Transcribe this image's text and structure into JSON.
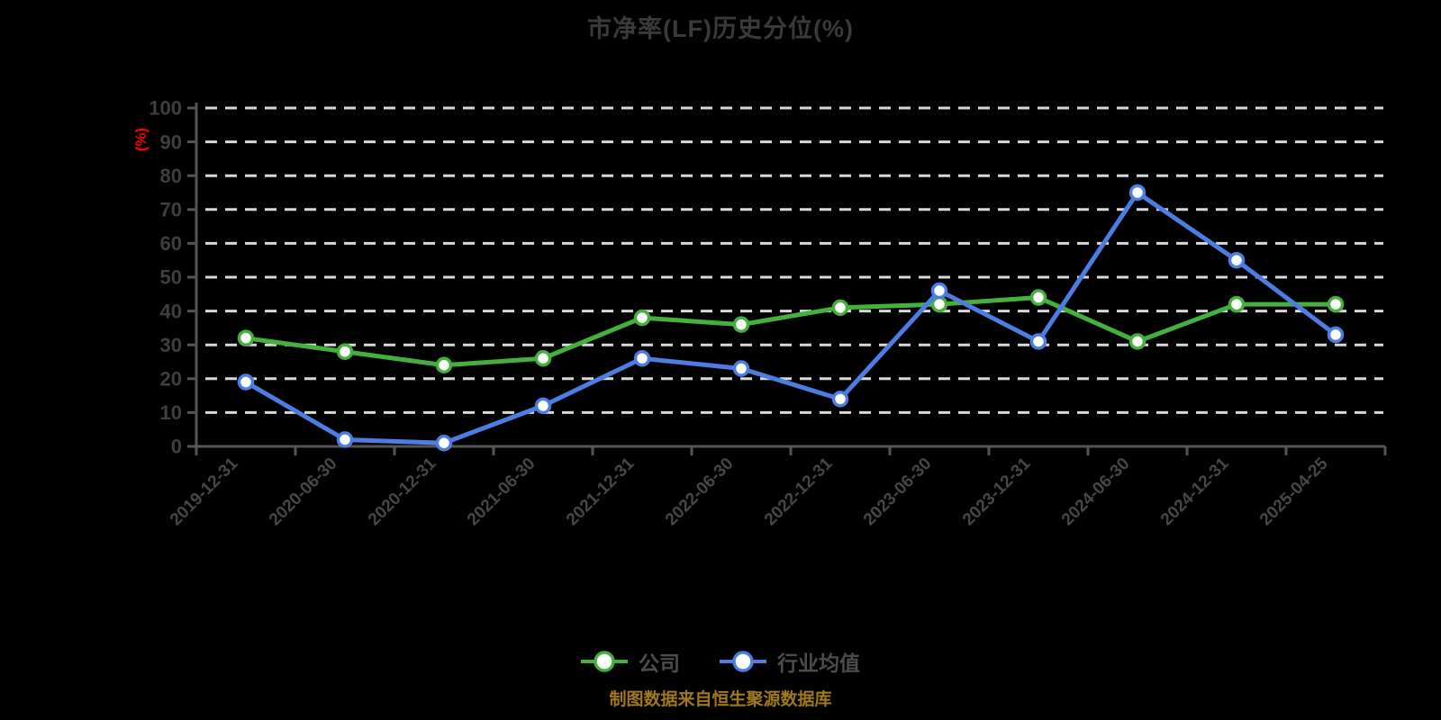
{
  "title": "市净率(LF)历史分位(%)",
  "y_axis": {
    "unit_label": "(%)",
    "unit_color": "#ff0000",
    "tick_labels": [
      "0",
      "10",
      "20",
      "30",
      "40",
      "50",
      "60",
      "70",
      "80",
      "90",
      "100"
    ]
  },
  "legend": [
    {
      "id": "company",
      "label": "公司",
      "color": "#44b13c"
    },
    {
      "id": "industry-average",
      "label": "行业均值",
      "color": "#4d7de2"
    }
  ],
  "footer": {
    "source_note": "制图数据来自恒生聚源数据库",
    "color": "#a1781b"
  },
  "chart_data": {
    "type": "line",
    "title": "市净率(LF)历史分位(%)",
    "xlabel": "",
    "ylabel": "(%)",
    "ylim": [
      0,
      100
    ],
    "y_ticks": [
      0,
      10,
      20,
      30,
      40,
      50,
      60,
      70,
      80,
      90,
      100
    ],
    "grid": "horizontal-dashed-white",
    "legend_position": "bottom",
    "marker": "circle-white-fill",
    "categories": [
      "2019-12-31",
      "2020-06-30",
      "2020-12-31",
      "2021-06-30",
      "2021-12-31",
      "2022-06-30",
      "2022-12-31",
      "2023-06-30",
      "2023-12-31",
      "2024-06-30",
      "2024-12-31",
      "2025-04-25"
    ],
    "series": [
      {
        "id": "company",
        "name": "公司",
        "color": "#44b13c",
        "values": [
          32,
          28,
          24,
          26,
          38,
          36,
          41,
          42,
          44,
          31,
          42,
          42
        ]
      },
      {
        "id": "industry-average",
        "name": "行业均值",
        "color": "#4d7de2",
        "values": [
          19,
          2,
          1,
          12,
          26,
          23,
          14,
          46,
          31,
          75,
          55,
          33
        ]
      }
    ]
  }
}
